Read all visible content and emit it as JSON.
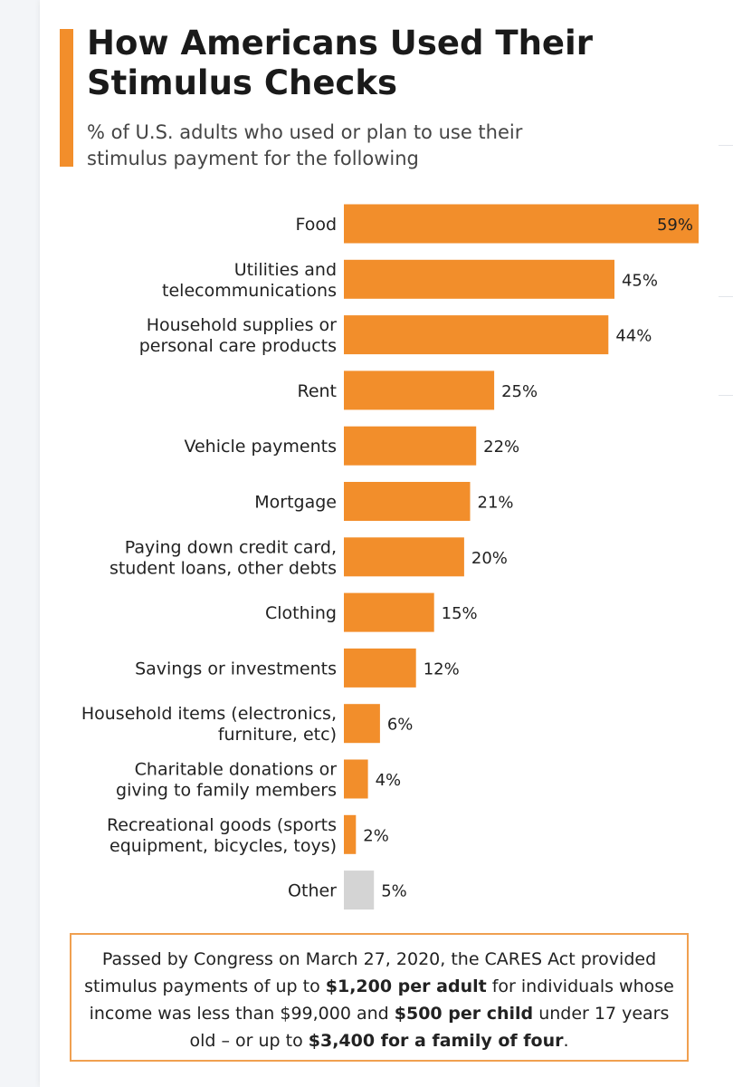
{
  "title": "How Americans Used Their Stimulus Checks",
  "subtitle": "% of U.S. adults who used or plan to use their stimulus payment for the following",
  "colors": {
    "accent": "#f28e2b",
    "other": "#d4d4d4",
    "note_border": "#f0a050"
  },
  "chart_data": {
    "type": "bar",
    "orientation": "horizontal",
    "title": "How Americans Used Their Stimulus Checks",
    "subtitle": "% of U.S. adults who used or plan to use their stimulus payment for the following",
    "unit": "%",
    "categories": [
      [
        "Food"
      ],
      [
        "Utilities and",
        "telecommunications"
      ],
      [
        "Household supplies or",
        "personal care products"
      ],
      [
        "Rent"
      ],
      [
        "Vehicle payments"
      ],
      [
        "Mortgage"
      ],
      [
        "Paying down credit card,",
        "student loans, other debts"
      ],
      [
        "Clothing"
      ],
      [
        "Savings or investments"
      ],
      [
        "Household items (electronics,",
        "furniture, etc)"
      ],
      [
        "Charitable donations or",
        "giving to family members"
      ],
      [
        "Recreational goods (sports",
        "equipment, bicycles, toys)"
      ],
      [
        "Other"
      ]
    ],
    "values": [
      59,
      45,
      44,
      25,
      22,
      21,
      20,
      15,
      12,
      6,
      4,
      2,
      5
    ],
    "value_labels": [
      "59%",
      "45%",
      "44%",
      "25%",
      "22%",
      "21%",
      "20%",
      "15%",
      "12%",
      "6%",
      "4%",
      "2%",
      "5%"
    ],
    "bar_colors": [
      "#f28e2b",
      "#f28e2b",
      "#f28e2b",
      "#f28e2b",
      "#f28e2b",
      "#f28e2b",
      "#f28e2b",
      "#f28e2b",
      "#f28e2b",
      "#f28e2b",
      "#f28e2b",
      "#f28e2b",
      "#d4d4d4"
    ],
    "xlim": [
      0,
      59
    ],
    "grid": false,
    "legend": "none"
  },
  "note": {
    "segments": [
      {
        "text": "Passed by Congress on March 27, 2020, the CARES Act provided stimulus payments of up to ",
        "bold": false
      },
      {
        "text": "$1,200 per adult",
        "bold": true
      },
      {
        "text": " for individuals whose income was less than $99,000 and ",
        "bold": false
      },
      {
        "text": "$500 per child",
        "bold": true
      },
      {
        "text": " under 17 years old – or up to ",
        "bold": false
      },
      {
        "text": "$3,400 for a family of four",
        "bold": true
      },
      {
        "text": ".",
        "bold": false
      }
    ]
  }
}
